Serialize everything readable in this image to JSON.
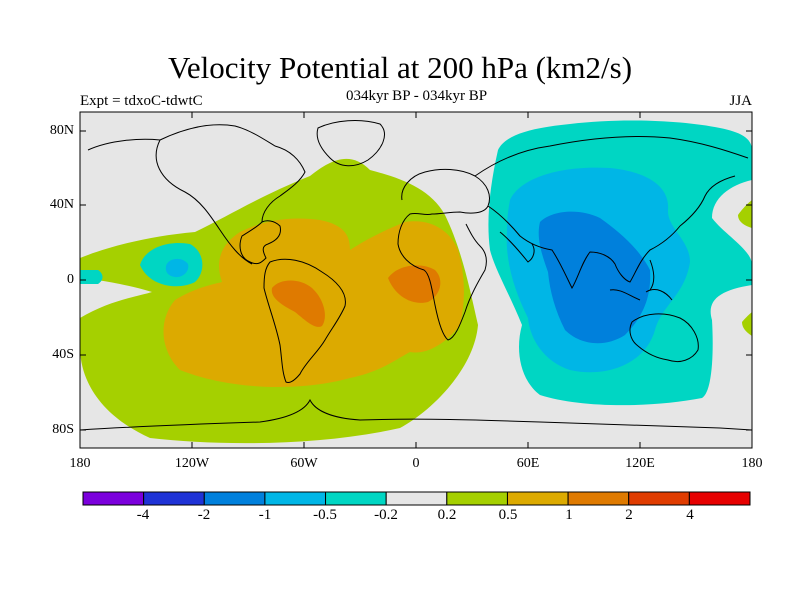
{
  "figure": {
    "title": "Velocity Potential at 200 hPa (km2/s)",
    "left_label": "Expt = tdxoC-tdwtC",
    "center_label": "034kyr BP - 034kyr BP",
    "right_label": "JJA"
  },
  "map": {
    "projection": "cylindrical equidistant",
    "lon_range": [
      -180,
      180
    ],
    "lat_range": [
      -90,
      90
    ],
    "y_tick_labels": [
      "80N",
      "40N",
      "0",
      "40S",
      "80S"
    ],
    "x_tick_labels": [
      "180",
      "120W",
      "60W",
      "0",
      "60E",
      "120E",
      "180"
    ],
    "background_color": "#e6e6e6",
    "field": "velocity potential anomaly, contour filled",
    "features": [
      {
        "level": "0.2 to 0.5",
        "color": "#a5d000",
        "region": "broad band over Atlantic, Americas and eastern Pacific"
      },
      {
        "level": "0.5 to 1",
        "color": "#dcaa00",
        "region": "South America, South Atlantic, West Africa"
      },
      {
        "level": "1 to 2",
        "color": "#df7a00",
        "region": "Brazil and equatorial Atlantic / Gulf of Guinea"
      },
      {
        "level": "-0.5 to -0.2",
        "color": "#00d6c3",
        "region": "Asia, Indian Ocean, western Pacific; small area near 140W 5N"
      },
      {
        "level": "-1 to -0.5",
        "color": "#00b6e6",
        "region": "South and East Asia, Indian Ocean"
      },
      {
        "level": "-2 to -1",
        "color": "#0080dc",
        "region": "Indian subcontinent to Maritime Continent"
      }
    ]
  },
  "colorbar": {
    "colors": [
      "#7b00dc",
      "#1f33d6",
      "#0080dc",
      "#00b6e6",
      "#00d6c3",
      "#e6e6e6",
      "#a5d000",
      "#dcaa00",
      "#df7a00",
      "#e03c00",
      "#e60000"
    ],
    "labels": [
      "-4",
      "-2",
      "-1",
      "-0.5",
      "-0.2",
      "0.2",
      "0.5",
      "1",
      "2",
      "4"
    ]
  }
}
